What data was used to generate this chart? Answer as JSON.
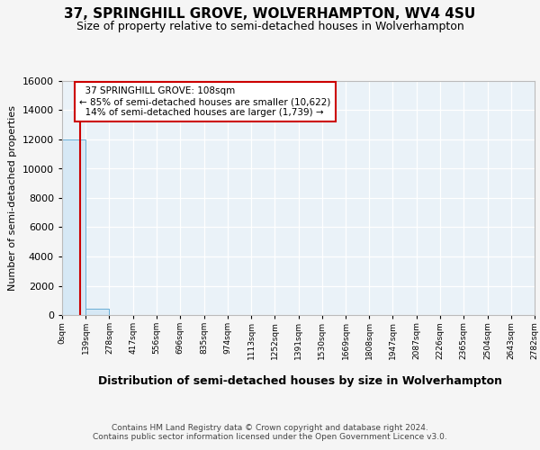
{
  "title_line1": "37, SPRINGHILL GROVE, WOLVERHAMPTON, WV4 4SU",
  "title_line2": "Size of property relative to semi-detached houses in Wolverhampton",
  "xlabel": "Distribution of semi-detached houses by size in Wolverhampton",
  "ylabel": "Number of semi-detached properties",
  "footer": "Contains HM Land Registry data © Crown copyright and database right 2024.\nContains public sector information licensed under the Open Government Licence v3.0.",
  "bin_edges": [
    0,
    139,
    278,
    417,
    556,
    696,
    835,
    974,
    1113,
    1252,
    1391,
    1530,
    1669,
    1808,
    1947,
    2087,
    2226,
    2365,
    2504,
    2643,
    2782
  ],
  "bin_labels": [
    "0sqm",
    "139sqm",
    "278sqm",
    "417sqm",
    "556sqm",
    "696sqm",
    "835sqm",
    "974sqm",
    "1113sqm",
    "1252sqm",
    "1391sqm",
    "1530sqm",
    "1669sqm",
    "1808sqm",
    "1947sqm",
    "2087sqm",
    "2226sqm",
    "2365sqm",
    "2504sqm",
    "2643sqm",
    "2782sqm"
  ],
  "bar_heights": [
    11980,
    430,
    12,
    5,
    2,
    1,
    1,
    0,
    0,
    0,
    0,
    0,
    0,
    0,
    0,
    0,
    0,
    0,
    0,
    0
  ],
  "bar_color": "#d6e8f5",
  "bar_edge_color": "#6aaed6",
  "property_size": 108,
  "property_label": "37 SPRINGHILL GROVE: 108sqm",
  "pct_smaller": 85,
  "count_smaller": "10,622",
  "pct_larger": 14,
  "count_larger": "1,739",
  "vline_color": "#cc0000",
  "annotation_box_color": "#cc0000",
  "ylim": [
    0,
    16000
  ],
  "yticks": [
    0,
    2000,
    4000,
    6000,
    8000,
    10000,
    12000,
    14000,
    16000
  ],
  "background_color": "#f5f5f5",
  "plot_bg_color": "#eaf2f8"
}
